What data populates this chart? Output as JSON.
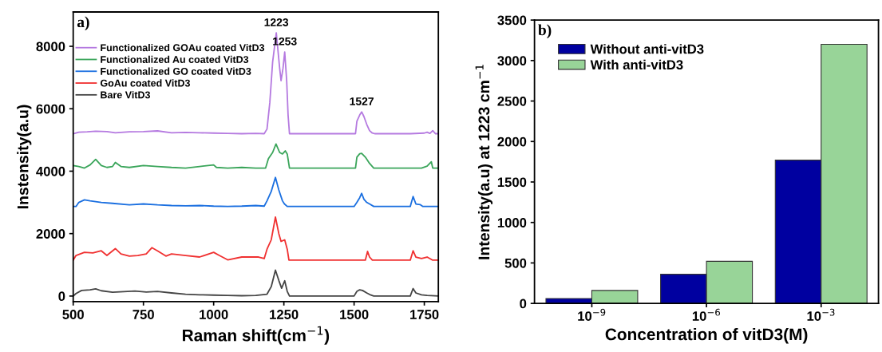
{
  "chart_data": [
    {
      "type": "line",
      "xlabel": "Raman shift(cm$^{−1}$)",
      "ylabel": "Instensity(a.u)",
      "xlim": [
        500,
        1800
      ],
      "xticks": [
        500,
        750,
        1000,
        1250,
        1500,
        1750
      ],
      "ylim": [
        -180,
        9100
      ],
      "yticks": [
        0,
        2000,
        4000,
        6000,
        8000
      ],
      "legend": "top left",
      "grid": false,
      "marker": "none",
      "line_style": "solid",
      "annotations": [
        "a)",
        {
          "text": "1223",
          "x": 1223,
          "y": 8430
        },
        {
          "text": "1253",
          "x": 1253,
          "y": 7820
        },
        {
          "text": "1527",
          "x": 1527,
          "y": 5900
        }
      ],
      "series": [
        {
          "name": "Functionalized GOAu coated VitD3",
          "color": "#b57ae0",
          "x": [
            500,
            520,
            550,
            580,
            620,
            650,
            700,
            750,
            800,
            850,
            900,
            950,
            1000,
            1050,
            1100,
            1150,
            1180,
            1190,
            1200,
            1210,
            1223,
            1235,
            1240,
            1247,
            1253,
            1260,
            1265,
            1270,
            1400,
            1505,
            1510,
            1520,
            1527,
            1535,
            1545,
            1555,
            1565,
            1575,
            1700,
            1750,
            1760,
            1770,
            1780,
            1790,
            1800
          ],
          "values": [
            5200,
            5250,
            5260,
            5280,
            5270,
            5230,
            5260,
            5270,
            5290,
            5230,
            5240,
            5230,
            5220,
            5210,
            5200,
            5210,
            5200,
            5350,
            6200,
            7500,
            8430,
            7300,
            6900,
            7300,
            7820,
            6900,
            5800,
            5200,
            5200,
            5200,
            5600,
            5800,
            5900,
            5750,
            5500,
            5300,
            5220,
            5200,
            5200,
            5220,
            5250,
            5210,
            5300,
            5200,
            5200
          ]
        },
        {
          "name": "Functionalized Au coated VitD3",
          "color": "#3aa55a",
          "x": [
            500,
            520,
            540,
            560,
            580,
            600,
            620,
            640,
            650,
            670,
            700,
            750,
            800,
            850,
            900,
            950,
            1000,
            1010,
            1050,
            1100,
            1150,
            1185,
            1195,
            1210,
            1222,
            1235,
            1245,
            1255,
            1262,
            1270,
            1505,
            1510,
            1520,
            1527,
            1540,
            1555,
            1570,
            1740,
            1760,
            1775,
            1780,
            1800
          ],
          "values": [
            4180,
            4150,
            4100,
            4200,
            4380,
            4180,
            4120,
            4150,
            4280,
            4150,
            4120,
            4180,
            4150,
            4120,
            4100,
            4150,
            4200,
            4120,
            4100,
            4120,
            4100,
            4100,
            4400,
            4600,
            4870,
            4600,
            4550,
            4650,
            4550,
            4100,
            4100,
            4450,
            4560,
            4570,
            4450,
            4250,
            4100,
            4100,
            4160,
            4300,
            4100,
            4100
          ]
        },
        {
          "name": "Functionalized GO coated VitD3",
          "color": "#1a6fe0",
          "x": [
            500,
            510,
            520,
            540,
            560,
            600,
            640,
            700,
            750,
            800,
            850,
            900,
            950,
            1000,
            1050,
            1100,
            1150,
            1180,
            1190,
            1205,
            1220,
            1232,
            1245,
            1252,
            1262,
            1500,
            1510,
            1520,
            1527,
            1535,
            1545,
            1555,
            1570,
            1700,
            1710,
            1720,
            1735,
            1745,
            1800
          ],
          "values": [
            2870,
            2870,
            3000,
            3080,
            3050,
            3000,
            2970,
            2920,
            2950,
            2920,
            2900,
            2890,
            2900,
            2880,
            2870,
            2880,
            2900,
            2880,
            3050,
            3350,
            3800,
            3400,
            3050,
            2950,
            2870,
            2870,
            3000,
            3150,
            3290,
            3100,
            3000,
            2950,
            2870,
            2870,
            3190,
            2950,
            2930,
            2870,
            2870
          ]
        },
        {
          "name": "GoAu coated VitD3",
          "color": "#f03030",
          "x": [
            500,
            510,
            540,
            570,
            600,
            620,
            650,
            670,
            700,
            730,
            760,
            780,
            800,
            830,
            850,
            900,
            950,
            1000,
            1020,
            1050,
            1100,
            1130,
            1160,
            1180,
            1190,
            1205,
            1220,
            1232,
            1240,
            1253,
            1262,
            1268,
            1540,
            1548,
            1555,
            1565,
            1700,
            1710,
            1720,
            1740,
            1760,
            1780,
            1800
          ],
          "values": [
            1150,
            1300,
            1400,
            1380,
            1450,
            1300,
            1520,
            1350,
            1280,
            1300,
            1350,
            1550,
            1450,
            1280,
            1350,
            1300,
            1250,
            1400,
            1300,
            1160,
            1250,
            1250,
            1250,
            1200,
            1500,
            1800,
            2530,
            2000,
            1750,
            1800,
            1500,
            1150,
            1150,
            1430,
            1250,
            1150,
            1150,
            1450,
            1250,
            1200,
            1250,
            1150,
            1150
          ]
        },
        {
          "name": "Bare VitD3",
          "color": "#444444",
          "x": [
            500,
            510,
            530,
            560,
            580,
            600,
            640,
            680,
            720,
            760,
            800,
            850,
            900,
            950,
            1000,
            1050,
            1100,
            1150,
            1190,
            1205,
            1220,
            1232,
            1242,
            1253,
            1262,
            1270,
            1500,
            1510,
            1520,
            1530,
            1545,
            1560,
            1570,
            1700,
            1710,
            1720,
            1740,
            1760,
            1800
          ],
          "values": [
            0,
            80,
            180,
            200,
            230,
            170,
            120,
            140,
            160,
            130,
            150,
            100,
            60,
            40,
            30,
            20,
            10,
            20,
            60,
            300,
            830,
            500,
            250,
            490,
            150,
            0,
            0,
            150,
            200,
            180,
            100,
            30,
            0,
            0,
            240,
            100,
            40,
            20,
            0
          ]
        }
      ]
    },
    {
      "type": "bar",
      "xlabel": "Concentration of vitD3(M)",
      "ylabel": "Intensity(a.u) at 1223 cm$^{−1}$",
      "categories": [
        "10$^{−9}$",
        "10$^{−6}$",
        "10$^{−3}$"
      ],
      "ylim": [
        0,
        3500
      ],
      "yticks": [
        0,
        500,
        1000,
        1500,
        2000,
        2500,
        3000,
        3500
      ],
      "legend": "top left",
      "grid": false,
      "annotations": [
        "b)"
      ],
      "series": [
        {
          "name": "Without anti-vitD3",
          "color": "#0000a0",
          "values": [
            60,
            360,
            1770
          ]
        },
        {
          "name": "With anti-vitD3",
          "color": "#98d498",
          "values": [
            160,
            520,
            3200
          ]
        }
      ]
    }
  ]
}
